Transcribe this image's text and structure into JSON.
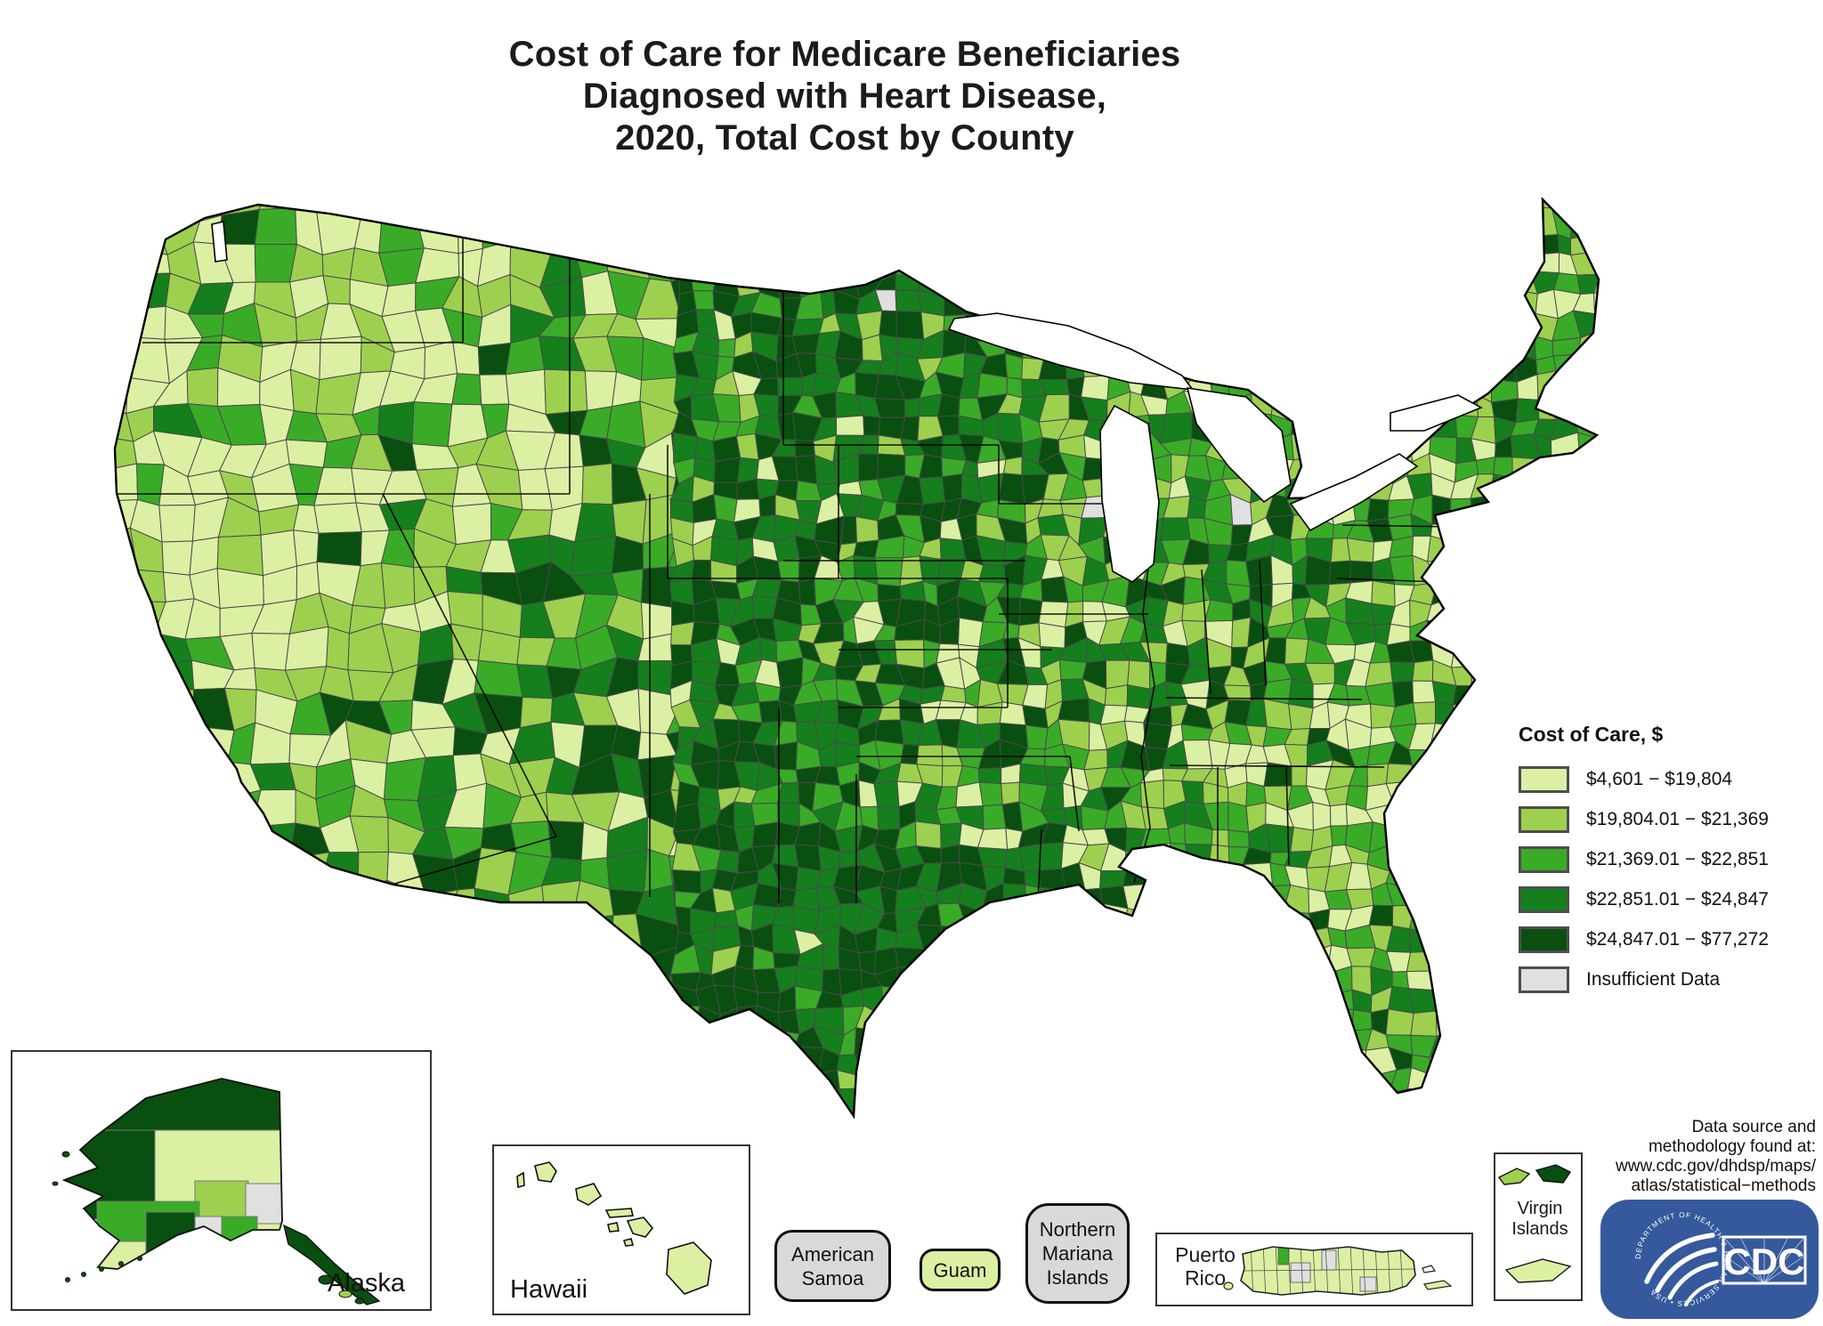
{
  "title": {
    "lines": [
      "Cost of Care for Medicare Beneficiaries",
      "Diagnosed with Heart Disease,",
      "2020, Total Cost by County"
    ]
  },
  "legend": {
    "title": "Cost of Care, $",
    "classes": [
      {
        "label": "$4,601 − $19,804",
        "color": "#dcf0a4"
      },
      {
        "label": "$19,804.01 − $21,369",
        "color": "#9ed04f"
      },
      {
        "label": "$21,369.01 − $22,851",
        "color": "#3aab27"
      },
      {
        "label": "$22,851.01 − $24,847",
        "color": "#147f1c"
      },
      {
        "label": "$24,847.01 − $77,272",
        "color": "#094f10"
      },
      {
        "label": "Insufficient Data",
        "color": "#e0e0e0"
      }
    ]
  },
  "map": {
    "county_border_color": "#4a4a4a",
    "state_border_color": "#000000",
    "outline_color": "#000000",
    "water_color": "#ffffff"
  },
  "insets": {
    "alaska": "Alaska",
    "hawaii": "Hawaii",
    "american_samoa": "American Samoa",
    "guam": "Guam",
    "northern_mariana": "Northern Mariana Islands",
    "puerto_rico": "Puerto Rico",
    "virgin_islands": "Virgin Islands"
  },
  "footer": {
    "datasource_lines": [
      "Data source and",
      "methodology found at:",
      "www.cdc.gov/dhdsp/maps/",
      "atlas/statistical−methods"
    ],
    "cdc_label": "CDC",
    "hhs_ring_text": "DEPARTMENT OF HEALTH & HUMAN SERVICES • USA"
  }
}
